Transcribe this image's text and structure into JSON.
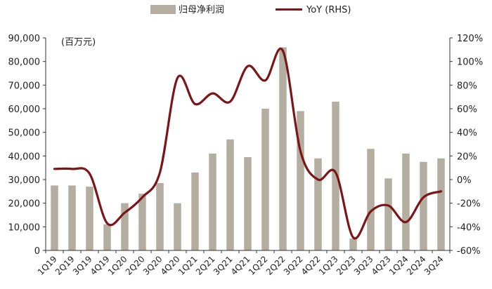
{
  "chart_data": {
    "type": "bar+line",
    "unit_label": "(百万元)",
    "categories": [
      "1Q19",
      "2Q19",
      "3Q19",
      "4Q19",
      "1Q20",
      "2Q20",
      "3Q20",
      "4Q20",
      "1Q21",
      "2Q21",
      "3Q21",
      "4Q21",
      "1Q22",
      "2Q22",
      "3Q22",
      "4Q22",
      "1Q23",
      "2Q23",
      "3Q23",
      "4Q23",
      "1Q24",
      "2Q24",
      "3Q24"
    ],
    "series": [
      {
        "name": "归母净利润",
        "type": "bar",
        "axis": "left",
        "color": "#b3ae9f",
        "values": [
          27500,
          27500,
          27000,
          11000,
          20000,
          24000,
          28500,
          20000,
          33000,
          41000,
          47000,
          39500,
          60000,
          86000,
          59000,
          39000,
          63000,
          5000,
          43000,
          30500,
          41000,
          37500,
          39000
        ]
      },
      {
        "name": "YoY (RHS)",
        "type": "line",
        "axis": "right",
        "color": "#7b1518",
        "values": [
          9,
          9,
          5,
          -37,
          -28,
          -15,
          6,
          86,
          64,
          73,
          66,
          96,
          84,
          109,
          24,
          0,
          6,
          -49,
          -27,
          -22,
          -36,
          -15,
          -10
        ]
      }
    ],
    "left_axis": {
      "ylim": [
        0,
        90000
      ],
      "ticks": [
        0,
        10000,
        20000,
        30000,
        40000,
        50000,
        60000,
        70000,
        80000,
        90000
      ],
      "tick_labels": [
        "0",
        "10,000",
        "20,000",
        "30,000",
        "40,000",
        "50,000",
        "60,000",
        "70,000",
        "80,000",
        "90,000"
      ]
    },
    "right_axis": {
      "ylim": [
        -60,
        120
      ],
      "ticks": [
        -60,
        -40,
        -20,
        0,
        20,
        40,
        60,
        80,
        100,
        120
      ],
      "tick_labels": [
        "-60%",
        "-40%",
        "-20%",
        "0%",
        "20%",
        "40%",
        "60%",
        "80%",
        "100%",
        "120%"
      ]
    },
    "legend_position": "top-center",
    "grid": false
  }
}
